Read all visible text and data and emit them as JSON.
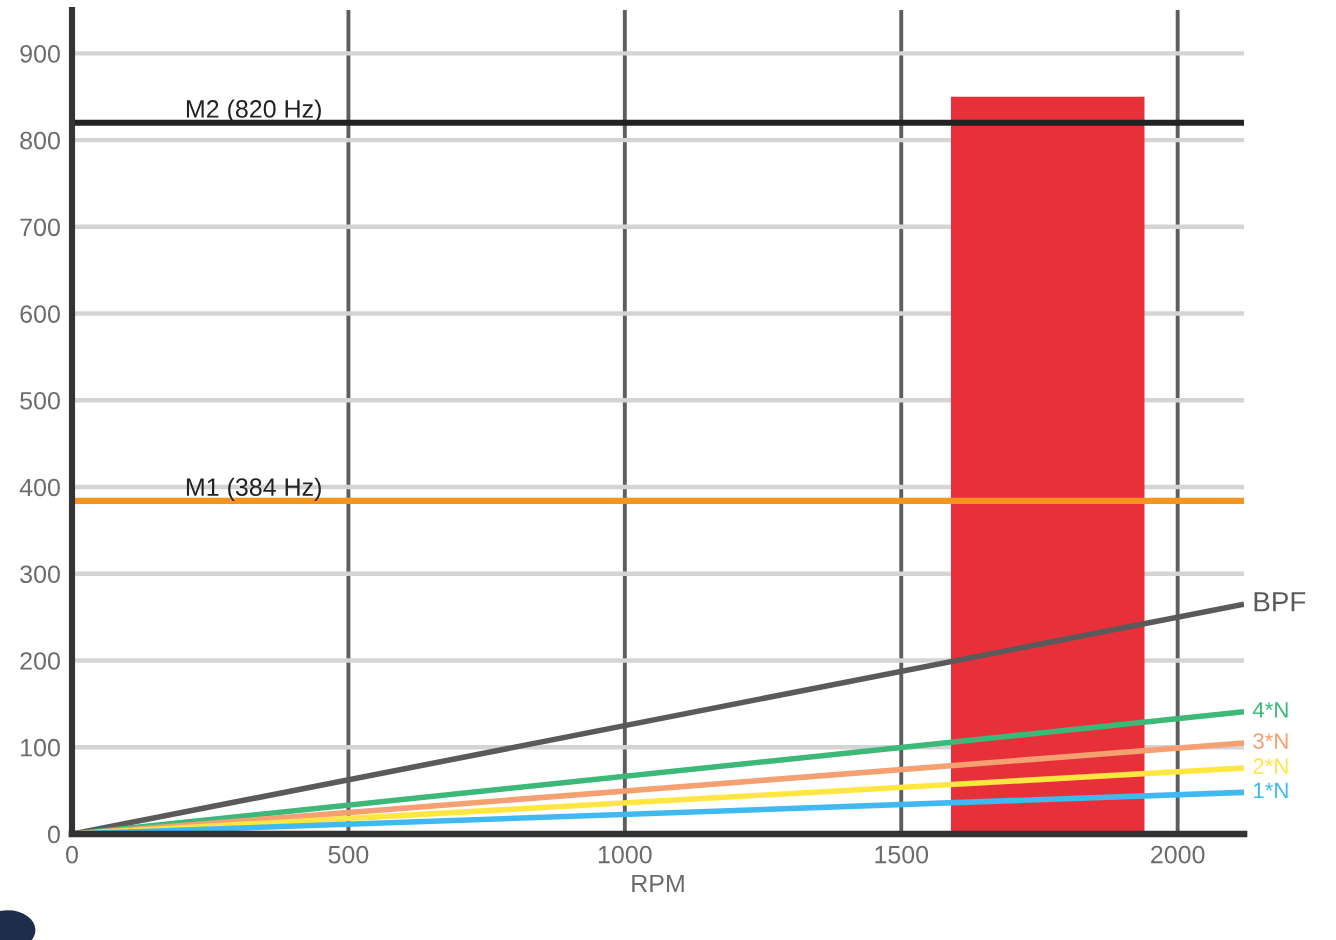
{
  "chart_data": {
    "type": "line",
    "xlabel": "RPM",
    "xlim": [
      0,
      2120
    ],
    "xticks": [
      0,
      500,
      1000,
      1500,
      2000
    ],
    "ylim": [
      0,
      950
    ],
    "yticks": [
      0,
      100,
      200,
      300,
      400,
      500,
      600,
      700,
      800,
      900
    ],
    "grid": true,
    "series": [
      {
        "type": "area",
        "color": "#e8303a",
        "x": [
          1590,
          1940
        ],
        "values": [
          850,
          850
        ]
      },
      {
        "name": "BPF",
        "color": "#5a5a5a",
        "x": [
          0,
          2120
        ],
        "values": [
          0,
          265
        ]
      },
      {
        "name": "4*N",
        "color": "#3cb878",
        "x": [
          0,
          2120
        ],
        "values": [
          0,
          141
        ]
      },
      {
        "name": "3*N",
        "color": "#f4a070",
        "x": [
          0,
          2120
        ],
        "values": [
          0,
          105
        ]
      },
      {
        "name": "2*N",
        "color": "#ffe640",
        "x": [
          0,
          2120
        ],
        "values": [
          0,
          76
        ]
      },
      {
        "name": "1*N",
        "color": "#40b8f0",
        "x": [
          0,
          2120
        ],
        "values": [
          0,
          48
        ]
      }
    ],
    "ref_lines": [
      {
        "axis": "y",
        "value": 820,
        "label": "M2 (820 Hz)",
        "color": "#222222"
      },
      {
        "axis": "y",
        "value": 384,
        "label": "M1 (384 Hz)",
        "color": "#f7941d"
      }
    ]
  }
}
